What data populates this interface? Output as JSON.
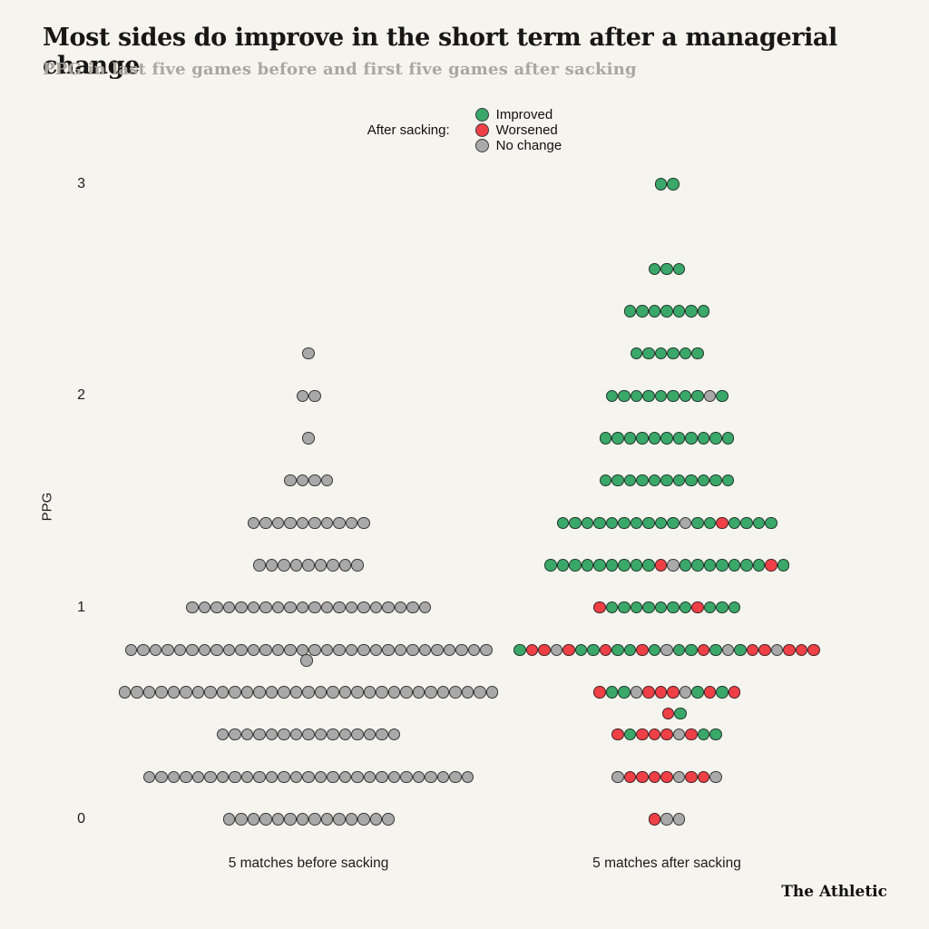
{
  "brand": "The Athletic",
  "chart_data": {
    "type": "scatter",
    "variant": "dot-strip-plot",
    "title": "Most sides do improve in the short term after a managerial change",
    "subtitle": "PPG in last five games before and first five games after sacking",
    "ylabel": "PPG",
    "ylim": [
      0,
      3
    ],
    "yticks": [
      3,
      2,
      1,
      0
    ],
    "grid": false,
    "legend": {
      "label": "After sacking:",
      "position": "top-center",
      "items": [
        {
          "key": "improved",
          "label": "Improved",
          "color": "#3aa869"
        },
        {
          "key": "worsened",
          "label": "Worsened",
          "color": "#ee4046"
        },
        {
          "key": "no_change",
          "label": "No change",
          "color": "#a9a9a9"
        }
      ]
    },
    "colors": {
      "improved": "#3aa869",
      "worsened": "#ee4046",
      "no_change": "#a9a9a9",
      "dot_outline": "#2a2a2a",
      "background": "#f5f4ee"
    },
    "columns": [
      {
        "key": "before",
        "label": "5 matches before sacking"
      },
      {
        "key": "after",
        "label": "5 matches after sacking"
      }
    ],
    "rows": [
      {
        "ppg": 3.0,
        "col": "after",
        "dots": [
          "G",
          "G"
        ]
      },
      {
        "ppg": 2.6,
        "col": "after",
        "dots": [
          "G",
          "G",
          "G"
        ]
      },
      {
        "ppg": 2.4,
        "col": "after",
        "dots": [
          "G",
          "G",
          "G",
          "G",
          "G",
          "G",
          "G"
        ]
      },
      {
        "ppg": 2.2,
        "col": "before",
        "dots": [
          "N"
        ]
      },
      {
        "ppg": 2.2,
        "col": "after",
        "dots": [
          "G",
          "G",
          "G",
          "G",
          "G",
          "G"
        ]
      },
      {
        "ppg": 2.0,
        "col": "before",
        "dots": [
          "N",
          "N"
        ]
      },
      {
        "ppg": 2.0,
        "col": "after",
        "dots": [
          "G",
          "G",
          "G",
          "G",
          "G",
          "G",
          "G",
          "G",
          "N",
          "G"
        ]
      },
      {
        "ppg": 1.8,
        "col": "before",
        "dots": [
          "N"
        ]
      },
      {
        "ppg": 1.8,
        "col": "after",
        "dots": [
          "G",
          "G",
          "G",
          "G",
          "G",
          "G",
          "G",
          "G",
          "G",
          "G",
          "G"
        ]
      },
      {
        "ppg": 1.6,
        "col": "before",
        "dots": [
          "N",
          "N",
          "N",
          "N"
        ]
      },
      {
        "ppg": 1.6,
        "col": "after",
        "dots": [
          "G",
          "G",
          "G",
          "G",
          "G",
          "G",
          "G",
          "G",
          "G",
          "G",
          "G"
        ]
      },
      {
        "ppg": 1.4,
        "col": "before",
        "dots": [
          "N",
          "N",
          "N",
          "N",
          "N",
          "N",
          "N",
          "N",
          "N",
          "N"
        ]
      },
      {
        "ppg": 1.4,
        "col": "after",
        "dots": [
          "G",
          "G",
          "G",
          "G",
          "G",
          "G",
          "G",
          "G",
          "G",
          "G",
          "N",
          "G",
          "G",
          "R",
          "G",
          "G",
          "G",
          "G"
        ]
      },
      {
        "ppg": 1.2,
        "col": "before",
        "dots": [
          "N",
          "N",
          "N",
          "N",
          "N",
          "N",
          "N",
          "N",
          "N"
        ]
      },
      {
        "ppg": 1.2,
        "col": "after",
        "dots": [
          "G",
          "G",
          "G",
          "G",
          "G",
          "G",
          "G",
          "G",
          "G",
          "R",
          "N",
          "G",
          "G",
          "G",
          "G",
          "G",
          "G",
          "G",
          "R",
          "G"
        ]
      },
      {
        "ppg": 1.0,
        "col": "before",
        "dots": [
          "N",
          "N",
          "N",
          "N",
          "N",
          "N",
          "N",
          "N",
          "N",
          "N",
          "N",
          "N",
          "N",
          "N",
          "N",
          "N",
          "N",
          "N",
          "N",
          "N"
        ]
      },
      {
        "ppg": 1.0,
        "col": "after",
        "dots": [
          "R",
          "G",
          "G",
          "G",
          "G",
          "G",
          "G",
          "G",
          "R",
          "G",
          "G",
          "G"
        ]
      },
      {
        "ppg": 0.8,
        "col": "before",
        "dots": [
          "N",
          "N",
          "N",
          "N",
          "N",
          "N",
          "N",
          "N",
          "N",
          "N",
          "N",
          "N",
          "N",
          "N",
          "N",
          "N",
          "N",
          "N",
          "N",
          "N",
          "N",
          "N",
          "N",
          "N",
          "N",
          "N",
          "N",
          "N",
          "N",
          "N"
        ]
      },
      {
        "ppg": 0.8,
        "col": "after",
        "dots": [
          "G",
          "R",
          "R",
          "N",
          "R",
          "G",
          "G",
          "R",
          "G",
          "G",
          "R",
          "G",
          "N",
          "G",
          "G",
          "R",
          "G",
          "N",
          "G",
          "R",
          "R",
          "N",
          "R",
          "R",
          "R"
        ]
      },
      {
        "ppg": 0.75,
        "col": "before",
        "dx": -2,
        "dots": [
          "N"
        ]
      },
      {
        "ppg": 0.6,
        "col": "before",
        "dots": [
          "N",
          "N",
          "N",
          "N",
          "N",
          "N",
          "N",
          "N",
          "N",
          "N",
          "N",
          "N",
          "N",
          "N",
          "N",
          "N",
          "N",
          "N",
          "N",
          "N",
          "N",
          "N",
          "N",
          "N",
          "N",
          "N",
          "N",
          "N",
          "N",
          "N",
          "N"
        ]
      },
      {
        "ppg": 0.6,
        "col": "after",
        "dots": [
          "R",
          "G",
          "G",
          "N",
          "R",
          "R",
          "R",
          "N",
          "G",
          "R",
          "G",
          "R"
        ]
      },
      {
        "ppg": 0.5,
        "col": "after",
        "dx": 8,
        "dots": [
          "R",
          "G"
        ]
      },
      {
        "ppg": 0.4,
        "col": "before",
        "dots": [
          "N",
          "N",
          "N",
          "N",
          "N",
          "N",
          "N",
          "N",
          "N",
          "N",
          "N",
          "N",
          "N",
          "N",
          "N"
        ]
      },
      {
        "ppg": 0.4,
        "col": "after",
        "dots": [
          "R",
          "G",
          "R",
          "R",
          "R",
          "N",
          "R",
          "G",
          "G"
        ]
      },
      {
        "ppg": 0.2,
        "col": "before",
        "dots": [
          "N",
          "N",
          "N",
          "N",
          "N",
          "N",
          "N",
          "N",
          "N",
          "N",
          "N",
          "N",
          "N",
          "N",
          "N",
          "N",
          "N",
          "N",
          "N",
          "N",
          "N",
          "N",
          "N",
          "N",
          "N",
          "N",
          "N"
        ]
      },
      {
        "ppg": 0.2,
        "col": "after",
        "dots": [
          "N",
          "R",
          "R",
          "R",
          "R",
          "N",
          "R",
          "R",
          "N"
        ]
      },
      {
        "ppg": 0.0,
        "col": "before",
        "dots": [
          "N",
          "N",
          "N",
          "N",
          "N",
          "N",
          "N",
          "N",
          "N",
          "N",
          "N",
          "N",
          "N",
          "N"
        ]
      },
      {
        "ppg": 0.0,
        "col": "after",
        "dots": [
          "R",
          "N",
          "N"
        ]
      }
    ]
  }
}
